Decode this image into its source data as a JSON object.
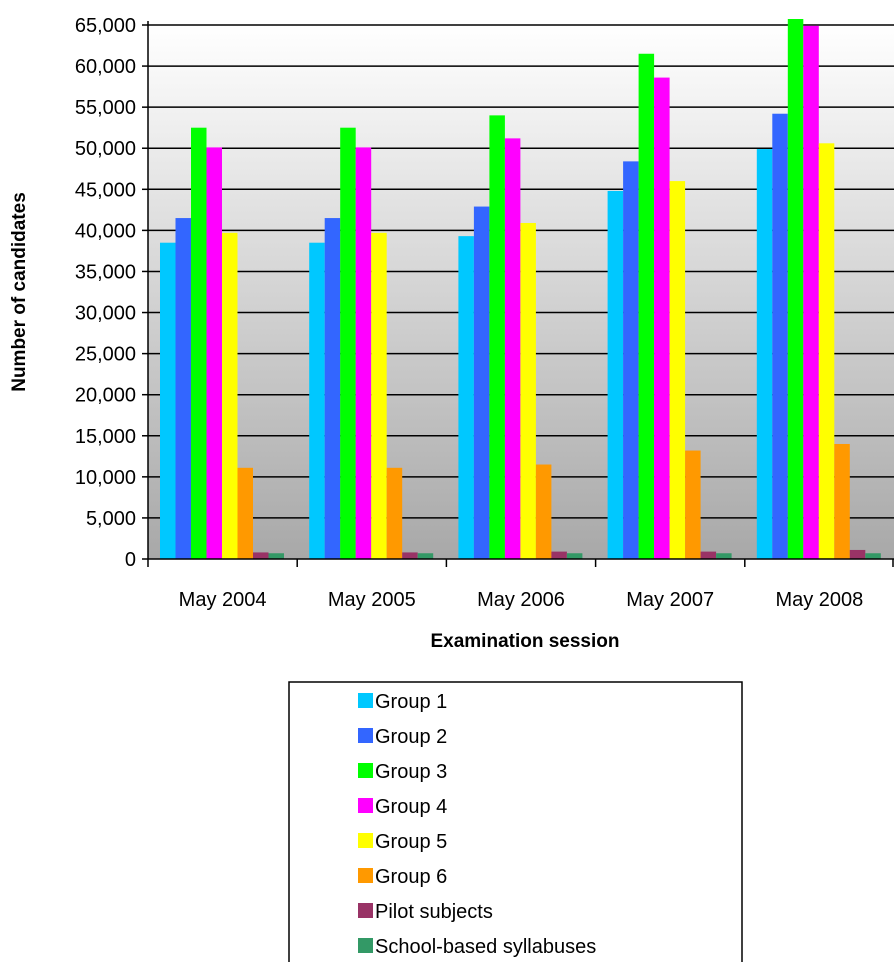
{
  "chart_data": {
    "type": "bar",
    "title": "",
    "xlabel": "Examination session",
    "ylabel": "Number of candidates",
    "categories": [
      "May 2004",
      "May 2005",
      "May 2006",
      "May 2007",
      "May 2008"
    ],
    "ylim": [
      0,
      65000
    ],
    "yticks": [
      0,
      5000,
      10000,
      15000,
      20000,
      25000,
      30000,
      35000,
      40000,
      45000,
      50000,
      55000,
      60000,
      65000
    ],
    "ytick_labels": [
      "0",
      "5,000",
      "10,000",
      "15,000",
      "20,000",
      "25,000",
      "30,000",
      "35,000",
      "40,000",
      "45,000",
      "50,000",
      "55,000",
      "60,000",
      "65,000"
    ],
    "grid": true,
    "legend_position": "bottom",
    "series": [
      {
        "name": "Group 1",
        "color": "#00C8FF",
        "values": [
          38500,
          38500,
          39300,
          44800,
          49900
        ]
      },
      {
        "name": "Group 2",
        "color": "#3366FF",
        "values": [
          41500,
          41500,
          42900,
          48400,
          54200
        ]
      },
      {
        "name": "Group 3",
        "color": "#00FF00",
        "values": [
          52500,
          52500,
          54000,
          61500,
          66000
        ]
      },
      {
        "name": "Group 4",
        "color": "#FF00FF",
        "values": [
          50100,
          50100,
          51200,
          58600,
          64900
        ]
      },
      {
        "name": "Group 5",
        "color": "#FFFF00",
        "values": [
          39700,
          39700,
          40900,
          46000,
          50600
        ]
      },
      {
        "name": "Group 6",
        "color": "#FF9900",
        "values": [
          11100,
          11100,
          11500,
          13200,
          14000
        ]
      },
      {
        "name": "Pilot subjects",
        "color": "#993366",
        "values": [
          800,
          800,
          900,
          900,
          1100
        ]
      },
      {
        "name": "School-based syllabuses",
        "color": "#339966",
        "values": [
          700,
          700,
          700,
          700,
          700
        ]
      }
    ]
  }
}
